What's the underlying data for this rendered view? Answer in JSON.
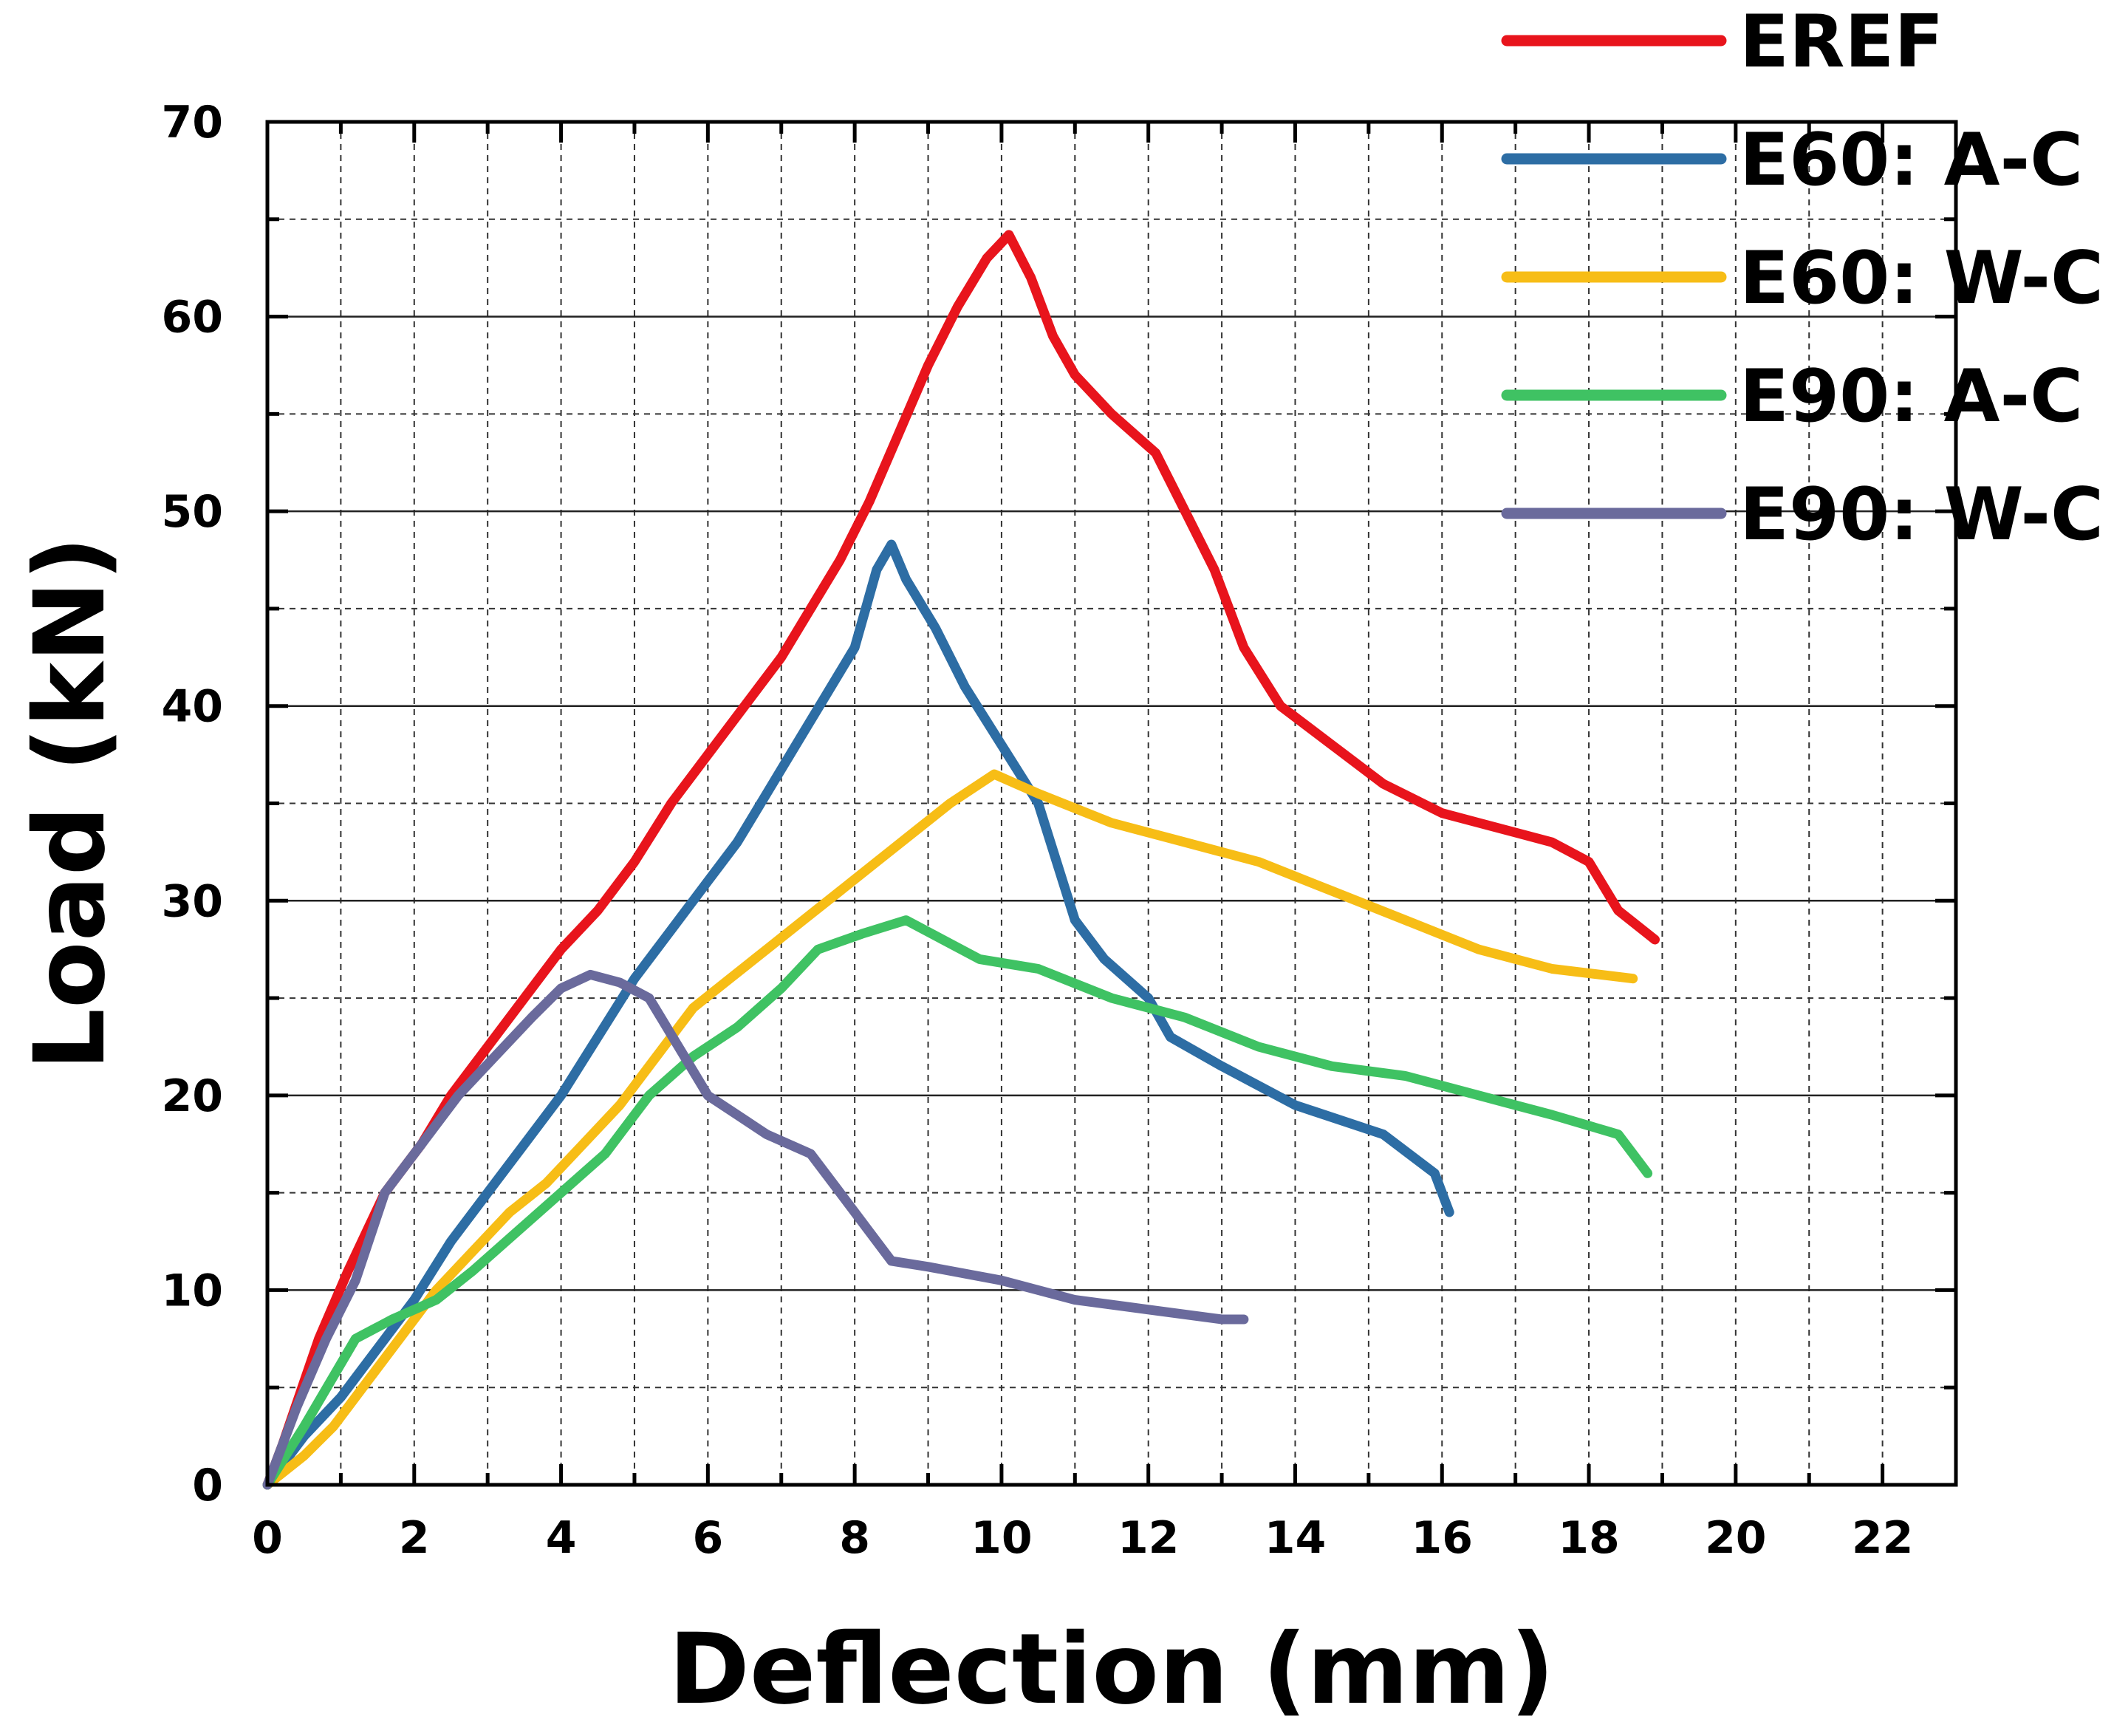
{
  "chart_data": {
    "type": "line",
    "title": "",
    "xlabel": "Deflection (mm)",
    "ylabel": "Load (kN)",
    "xlim": [
      0,
      23
    ],
    "ylim": [
      0,
      70
    ],
    "xticks": [
      0,
      2,
      4,
      6,
      8,
      10,
      12,
      14,
      16,
      18,
      20,
      22
    ],
    "xtick_labels": [
      "0",
      "2",
      "4",
      "6",
      "8",
      "10",
      "12",
      "14",
      "16",
      "18",
      "20",
      "22"
    ],
    "yticks": [
      0,
      10,
      20,
      30,
      40,
      50,
      60,
      70
    ],
    "ytick_labels": [
      "0",
      "10",
      "20",
      "30",
      "40",
      "50",
      "60",
      "70"
    ],
    "grid": "dashed, every 1 mm and 5 kN",
    "legend_position": "top-right",
    "series": [
      {
        "name": "EREF",
        "color": "#e8141c",
        "x": [
          0,
          0.2,
          0.7,
          1.1,
          1.6,
          2.1,
          2.5,
          3.0,
          3.5,
          4.0,
          4.5,
          5.0,
          5.5,
          6.0,
          6.5,
          7.0,
          7.4,
          7.8,
          8.2,
          8.6,
          9.0,
          9.4,
          9.8,
          10.1,
          10.4,
          10.7,
          11.0,
          11.5,
          12.1,
          12.5,
          12.9,
          13.3,
          13.8,
          14.5,
          15.2,
          16.0,
          16.5,
          17.0,
          17.5,
          18.0,
          18.4,
          18.9
        ],
        "y": [
          0,
          2,
          7.5,
          11,
          15,
          17.5,
          20,
          22.5,
          25,
          27.5,
          29.5,
          32,
          35,
          37.5,
          40,
          42.5,
          45,
          47.5,
          50.5,
          54,
          57.5,
          60.5,
          63,
          64.2,
          62,
          59,
          57,
          55,
          53,
          50,
          47,
          43,
          40,
          38,
          36,
          34.5,
          34,
          33.5,
          33,
          32,
          29.5,
          28
        ]
      },
      {
        "name": "E60: A-C",
        "color": "#2d6da4",
        "x": [
          0,
          0.5,
          1.0,
          1.5,
          2.0,
          2.5,
          3.0,
          3.5,
          4.0,
          4.5,
          5.0,
          5.5,
          6.0,
          6.4,
          6.8,
          7.2,
          7.6,
          8.0,
          8.3,
          8.5,
          8.7,
          9.1,
          9.5,
          10.0,
          10.5,
          11.0,
          11.4,
          12.0,
          12.3,
          13.0,
          14.0,
          15.2,
          15.9,
          16.1
        ],
        "y": [
          0,
          2.5,
          4.5,
          7,
          9.5,
          12.5,
          15,
          17.5,
          20,
          23,
          26,
          28.5,
          31,
          33,
          35.5,
          38,
          40.5,
          43,
          47,
          48.3,
          46.5,
          44,
          41,
          38,
          35,
          29,
          27,
          25,
          23,
          21.5,
          19.5,
          18,
          16,
          14
        ]
      },
      {
        "name": "E60: W-C",
        "color": "#f7bd16",
        "x": [
          0,
          0.5,
          0.9,
          1.3,
          1.8,
          2.3,
          2.8,
          3.3,
          3.8,
          4.3,
          4.8,
          5.3,
          5.8,
          6.3,
          6.8,
          7.3,
          7.8,
          8.3,
          8.8,
          9.3,
          9.9,
          10.5,
          11.5,
          12.5,
          13.5,
          14.5,
          15.5,
          16.5,
          17.5,
          18.6
        ],
        "y": [
          0,
          1.5,
          3,
          5,
          7.5,
          10,
          12,
          14,
          15.5,
          17.5,
          19.5,
          22,
          24.5,
          26,
          27.5,
          29,
          30.5,
          32,
          33.5,
          35,
          36.5,
          35.5,
          34,
          33,
          32,
          30.5,
          29,
          27.5,
          26.5,
          26
        ]
      },
      {
        "name": "E90: A-C",
        "color": "#3fc263",
        "x": [
          0,
          0.5,
          1.2,
          1.7,
          2.3,
          2.8,
          3.4,
          4.0,
          4.6,
          5.2,
          5.8,
          6.4,
          7.0,
          7.5,
          8.1,
          8.7,
          9.2,
          9.7,
          10.5,
          11.5,
          12.5,
          13.5,
          14.5,
          15.5,
          16.5,
          17.5,
          18.4,
          18.8
        ],
        "y": [
          0,
          3,
          7.5,
          8.5,
          9.5,
          11,
          13,
          15,
          17,
          20,
          22,
          23.5,
          25.5,
          27.5,
          28.3,
          29,
          28,
          27,
          26.5,
          25,
          24,
          22.5,
          21.5,
          21,
          20,
          19,
          18,
          16
        ]
      },
      {
        "name": "E90: W-C",
        "color": "#6a6a9c",
        "x": [
          0,
          0.4,
          0.8,
          1.2,
          1.6,
          2.1,
          2.6,
          3.1,
          3.6,
          4.0,
          4.4,
          4.8,
          5.2,
          5.6,
          6.0,
          6.4,
          6.8,
          7.4,
          7.8,
          8.2,
          8.5,
          9.0,
          10.0,
          11.0,
          12.0,
          13.0,
          13.3
        ],
        "y": [
          0,
          4,
          7.5,
          10.5,
          15,
          17.5,
          20,
          22,
          24,
          25.5,
          26.2,
          25.8,
          25,
          22.5,
          20,
          19,
          18,
          17,
          15,
          13,
          11.5,
          11.2,
          10.5,
          9.5,
          9,
          8.5,
          8.5
        ]
      }
    ]
  }
}
